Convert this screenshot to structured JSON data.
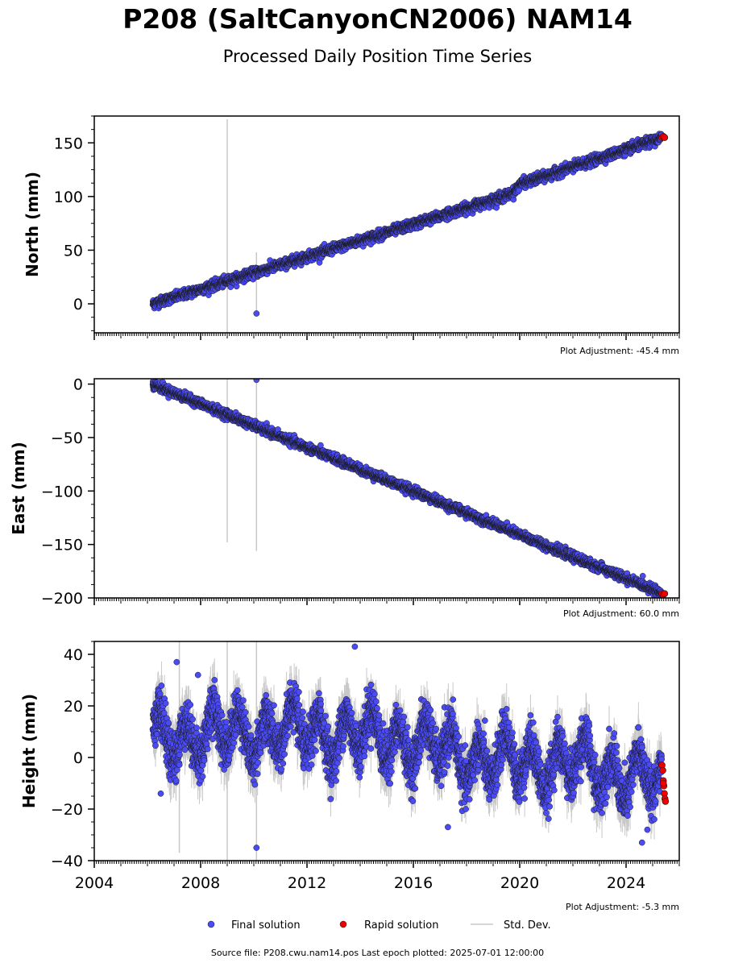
{
  "page": {
    "title": "P208 (SaltCanyonCN2006) NAM14",
    "subtitle": "Processed Daily Position Time Series",
    "footer": "Source file: P208.cwu.nam14.pos  Last epoch plotted: 2025-07-01 12:00:00"
  },
  "legend": {
    "final_label": "Final solution",
    "rapid_label": "Rapid solution",
    "std_label": "Std. Dev."
  },
  "colors": {
    "final": "#4b4bf5",
    "rapid": "#ee0000",
    "stddev": "#c8c8c8",
    "marker_edge": "#1a1a1a"
  },
  "chart_data": [
    {
      "type": "scatter",
      "ylabel": "North (mm)",
      "adjustment": "Plot Adjustment: -45.4 mm",
      "xlim": [
        2004,
        2026
      ],
      "ylim": [
        -27,
        175
      ],
      "yticks": [
        0,
        50,
        100,
        150
      ],
      "ytick_labels": [
        "0",
        "50",
        "100",
        "150"
      ],
      "x_major": [
        2004,
        2008,
        2012,
        2016,
        2020,
        2024
      ],
      "x_tick_labels": [],
      "trend": [
        [
          2006.2,
          0
        ],
        [
          2016,
          74
        ],
        [
          2019.4,
          100
        ],
        [
          2019.8,
          104
        ],
        [
          2020.0,
          112
        ],
        [
          2020.5,
          115
        ],
        [
          2025.4,
          155
        ]
      ],
      "noise": 2.2,
      "outliers": [
        [
          2010.1,
          -9
        ]
      ],
      "errorbars": [
        [
          2009.0,
          25,
          172,
          -27
        ],
        [
          2010.1,
          -9,
          48,
          -10
        ]
      ],
      "rapid": [
        [
          2025.35,
          155
        ],
        [
          2025.4,
          156
        ],
        [
          2025.45,
          155
        ]
      ]
    },
    {
      "type": "scatter",
      "ylabel": "East (mm)",
      "adjustment": "Plot Adjustment: 60.0 mm",
      "xlim": [
        2004,
        2026
      ],
      "ylim": [
        -200,
        5
      ],
      "yticks": [
        -200,
        -150,
        -100,
        -50,
        0
      ],
      "ytick_labels": [
        "−200",
        "−150",
        "−100",
        "−50",
        "0"
      ],
      "x_major": [
        2004,
        2008,
        2012,
        2016,
        2020,
        2024
      ],
      "x_tick_labels": [],
      "trend": [
        [
          2006.2,
          0
        ],
        [
          2025.4,
          -196
        ]
      ],
      "noise": 2.0,
      "outliers": [
        [
          2010.1,
          4
        ]
      ],
      "errorbars": [
        [
          2009.0,
          -30,
          5,
          -148
        ],
        [
          2010.1,
          -30,
          5,
          -156
        ]
      ],
      "rapid": [
        [
          2025.35,
          -196
        ],
        [
          2025.4,
          -197
        ],
        [
          2025.45,
          -196
        ]
      ]
    },
    {
      "type": "scatter",
      "ylabel": "Height (mm)",
      "adjustment": "Plot Adjustment: -5.3 mm",
      "xlim": [
        2004,
        2026
      ],
      "ylim": [
        -40,
        45
      ],
      "yticks": [
        -40,
        -20,
        0,
        20,
        40
      ],
      "ytick_labels": [
        "−40",
        "−20",
        "0",
        "20",
        "40"
      ],
      "x_major": [
        2004,
        2008,
        2012,
        2016,
        2020,
        2024
      ],
      "x_tick_labels": [
        "2004",
        "2008",
        "2012",
        "2016",
        "2020",
        "2024"
      ],
      "trend": [
        [
          2006.2,
          8
        ],
        [
          2010,
          10
        ],
        [
          2014,
          9
        ],
        [
          2016,
          6
        ],
        [
          2018,
          0
        ],
        [
          2020,
          -2
        ],
        [
          2022,
          -2
        ],
        [
          2023,
          -5
        ],
        [
          2025.4,
          -9
        ]
      ],
      "seasonal": 8,
      "noise": 4.5,
      "outliers": [
        [
          2010.1,
          -35
        ],
        [
          2013.8,
          43
        ],
        [
          2024.6,
          -33
        ],
        [
          2007.1,
          37
        ],
        [
          2007.9,
          32
        ],
        [
          2006.5,
          -14
        ],
        [
          2017.3,
          -27
        ],
        [
          2024.8,
          -28
        ]
      ],
      "errorbars": [
        [
          2009.0,
          10,
          45,
          -40
        ],
        [
          2010.1,
          10,
          45,
          -40
        ],
        [
          2007.2,
          8,
          45,
          -37
        ]
      ],
      "rapid": [
        [
          2025.35,
          -3
        ],
        [
          2025.38,
          -5
        ],
        [
          2025.4,
          -9
        ],
        [
          2025.42,
          -11
        ],
        [
          2025.44,
          -14
        ],
        [
          2025.46,
          -16
        ],
        [
          2025.48,
          -17
        ],
        [
          2025.4,
          -10
        ]
      ]
    }
  ]
}
